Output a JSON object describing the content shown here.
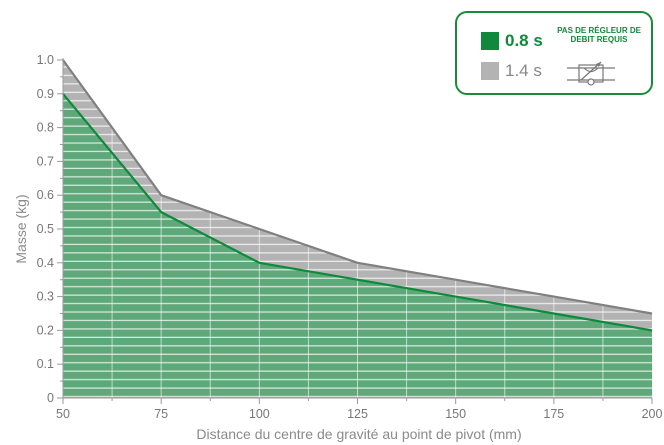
{
  "chart_data": {
    "type": "area",
    "xlabel": "Distance du centre de gravité au point de pivot (mm)",
    "ylabel": "Masse (kg)",
    "xlim": [
      50,
      200
    ],
    "ylim": [
      0,
      1.0
    ],
    "x_ticks": [
      "50",
      "75",
      "100",
      "125",
      "150",
      "175",
      "200"
    ],
    "y_ticks": [
      "0",
      "0.1",
      "0.2",
      "0.3",
      "0.4",
      "0.5",
      "0.6",
      "0.7",
      "0.8",
      "0.9",
      "1.0"
    ],
    "grid": "horizontal stripes",
    "legend_position": "top-right",
    "series": [
      {
        "name": "1.4 s",
        "color": "#b3b3b3",
        "line_color": "#808080",
        "x": [
          50,
          75,
          100,
          125,
          150,
          175,
          200
        ],
        "y": [
          1.0,
          0.6,
          0.5,
          0.4,
          0.35,
          0.3,
          0.25
        ]
      },
      {
        "name": "0.8 s",
        "color": "#5fa87a",
        "line_color": "#0f8a3c",
        "x": [
          50,
          75,
          100,
          125,
          150,
          175,
          200
        ],
        "y": [
          0.9,
          0.55,
          0.4,
          0.35,
          0.3,
          0.25,
          0.2
        ]
      }
    ]
  },
  "legend": {
    "fast_label": "0.8 s",
    "slow_label": "1.4 s",
    "note_line1": "PAS DE RÉGLEUR DE",
    "note_line2": "DEBIT REQUIS",
    "icon": "flow-regulator-valve-icon"
  }
}
